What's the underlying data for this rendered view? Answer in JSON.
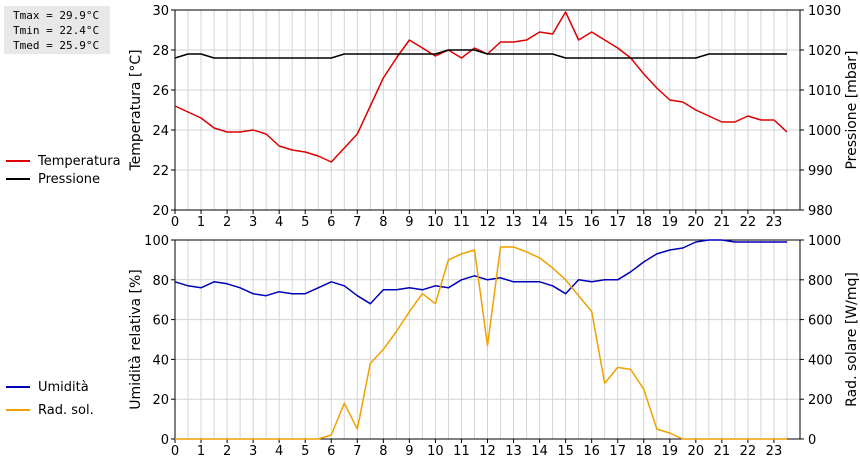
{
  "stats": {
    "tmax": "Tmax = 29.9°C",
    "tmin": "Tmin = 22.4°C",
    "tmed": "Tmed = 25.9°C"
  },
  "chart_data": [
    {
      "type": "line",
      "xlim": [
        0,
        24
      ],
      "x_ticks": [
        "0",
        "1",
        "2",
        "3",
        "4",
        "5",
        "6",
        "7",
        "8",
        "9",
        "10",
        "11",
        "12",
        "13",
        "14",
        "15",
        "16",
        "17",
        "18",
        "19",
        "20",
        "21",
        "22",
        "23"
      ],
      "ylabel": "Temperatura [°C]",
      "ylim": [
        20,
        30
      ],
      "y_ticks": [
        "20",
        "22",
        "24",
        "26",
        "28",
        "30"
      ],
      "ylabel_right": "Pressione [mbar]",
      "ylim_right": [
        980,
        1030
      ],
      "y_ticks_right": [
        "980",
        "990",
        "1000",
        "1010",
        "1020",
        "1030"
      ],
      "grid": true,
      "legend_placement": "left",
      "series": [
        {
          "name": "Temperatura",
          "axis": "left",
          "color": "#dd0000",
          "x": [
            0,
            0.5,
            1,
            1.5,
            2,
            2.5,
            3,
            3.5,
            4,
            4.5,
            5,
            5.5,
            6,
            6.5,
            7,
            7.5,
            8,
            8.5,
            9,
            9.5,
            10,
            10.5,
            11,
            11.5,
            12,
            12.5,
            13,
            13.5,
            14,
            14.5,
            15,
            15.5,
            16,
            16.5,
            17,
            17.5,
            18,
            18.5,
            19,
            19.5,
            20,
            20.5,
            21,
            21.5,
            22,
            22.5,
            23,
            23.5
          ],
          "y": [
            25.2,
            24.9,
            24.6,
            24.1,
            23.9,
            23.9,
            24.0,
            23.8,
            23.2,
            23.0,
            22.9,
            22.7,
            22.4,
            23.1,
            23.8,
            25.2,
            26.6,
            27.6,
            28.5,
            28.1,
            27.7,
            28.0,
            27.6,
            28.1,
            27.8,
            28.4,
            28.4,
            28.5,
            28.9,
            28.8,
            29.9,
            28.5,
            28.9,
            28.5,
            28.1,
            27.6,
            26.8,
            26.1,
            25.5,
            25.4,
            25.0,
            24.7,
            24.4,
            24.4,
            24.7,
            24.5,
            24.5,
            23.9
          ]
        },
        {
          "name": "Pressione",
          "axis": "right",
          "color": "#000000",
          "x": [
            0,
            0.5,
            1,
            1.5,
            2,
            6,
            6.5,
            7,
            10,
            10.5,
            11.5,
            12,
            14.5,
            15,
            20,
            20.5,
            21,
            23.5
          ],
          "y": [
            1018,
            1019,
            1019,
            1018,
            1018,
            1018,
            1019,
            1019,
            1019,
            1020,
            1020,
            1019,
            1019,
            1018,
            1018,
            1019,
            1019,
            1019
          ]
        }
      ]
    },
    {
      "type": "line",
      "xlim": [
        0,
        24
      ],
      "x_ticks": [
        "0",
        "1",
        "2",
        "3",
        "4",
        "5",
        "6",
        "7",
        "8",
        "9",
        "10",
        "11",
        "12",
        "13",
        "14",
        "15",
        "16",
        "17",
        "18",
        "19",
        "20",
        "21",
        "22",
        "23"
      ],
      "ylabel": "Umidità relativa [%]",
      "ylim": [
        0,
        100
      ],
      "y_ticks": [
        "0",
        "20",
        "40",
        "60",
        "80",
        "100"
      ],
      "ylabel_right": "Rad. solare [W/mq]",
      "ylim_right": [
        0,
        1000
      ],
      "y_ticks_right": [
        "0",
        "200",
        "400",
        "600",
        "800",
        "1000"
      ],
      "grid": true,
      "legend_placement": "left",
      "series": [
        {
          "name": "Umidità",
          "axis": "left",
          "color": "#0000bb",
          "x": [
            0,
            0.5,
            1,
            1.5,
            2,
            2.5,
            3,
            3.5,
            4,
            4.5,
            5,
            5.5,
            6,
            6.5,
            7,
            7.5,
            8,
            8.5,
            9,
            9.5,
            10,
            10.5,
            11,
            11.5,
            12,
            12.5,
            13,
            13.5,
            14,
            14.5,
            15,
            15.5,
            16,
            16.5,
            17,
            17.5,
            18,
            18.5,
            19,
            19.5,
            20,
            20.5,
            21,
            21.5,
            22,
            22.5,
            23,
            23.5
          ],
          "y": [
            79,
            77,
            76,
            79,
            78,
            76,
            73,
            72,
            74,
            73,
            73,
            76,
            79,
            77,
            72,
            68,
            75,
            75,
            76,
            75,
            77,
            76,
            80,
            82,
            80,
            81,
            79,
            79,
            79,
            77,
            73,
            80,
            79,
            80,
            80,
            84,
            89,
            93,
            95,
            96,
            99,
            100,
            100,
            99,
            99,
            99,
            99,
            99
          ]
        },
        {
          "name": "Rad. sol.",
          "axis": "right",
          "color": "#f0a000",
          "x": [
            0,
            0.5,
            1,
            1.5,
            2,
            2.5,
            3,
            3.5,
            4,
            4.5,
            5,
            5.5,
            6,
            6.5,
            7,
            7.5,
            8,
            8.5,
            9,
            9.5,
            10,
            10.5,
            11,
            11.5,
            12,
            12.5,
            13,
            13.5,
            14,
            14.5,
            15,
            15.5,
            16,
            16.5,
            17,
            17.5,
            18,
            18.5,
            19,
            19.5,
            20,
            20.5,
            21,
            21.5,
            22,
            22.5,
            23,
            23.5
          ],
          "y": [
            0,
            0,
            0,
            0,
            0,
            0,
            0,
            0,
            0,
            0,
            0,
            0,
            20,
            180,
            50,
            380,
            450,
            540,
            640,
            730,
            680,
            900,
            930,
            950,
            470,
            965,
            965,
            940,
            910,
            860,
            800,
            720,
            640,
            280,
            360,
            350,
            250,
            50,
            30,
            0,
            0,
            0,
            0,
            0,
            0,
            0,
            0,
            0
          ]
        }
      ]
    }
  ]
}
